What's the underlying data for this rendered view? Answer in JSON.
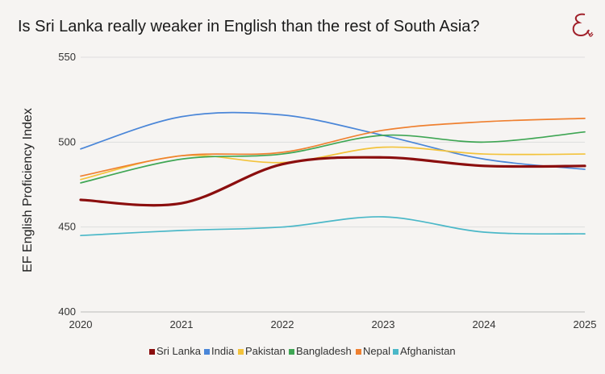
{
  "page": {
    "title": "Is Sri Lanka really weaker in English than the rest of South Asia?"
  },
  "chart_data": {
    "type": "line",
    "title": "Is Sri Lanka really weaker in English than the rest of South Asia?",
    "xlabel": "",
    "ylabel": "EF English Proficiency Index",
    "x": [
      2020,
      2021,
      2022,
      2023,
      2024,
      2025
    ],
    "ylim": [
      400,
      550
    ],
    "yticks": [
      400,
      450,
      500,
      550
    ],
    "grid": true,
    "legend_position": "bottom",
    "series": [
      {
        "name": "Sri Lanka",
        "color": "#8b0e0e",
        "values": [
          466,
          464,
          487,
          491,
          486,
          486
        ]
      },
      {
        "name": "India",
        "color": "#4a86d8",
        "values": [
          496,
          515,
          516,
          504,
          490,
          484
        ]
      },
      {
        "name": "Pakistan",
        "color": "#f3c33b",
        "values": [
          478,
          492,
          488,
          497,
          493,
          493
        ]
      },
      {
        "name": "Bangladesh",
        "color": "#3fa654",
        "values": [
          476,
          490,
          493,
          504,
          500,
          506
        ]
      },
      {
        "name": "Nepal",
        "color": "#ef8030",
        "values": [
          480,
          492,
          494,
          507,
          512,
          514
        ]
      },
      {
        "name": "Afghanistan",
        "color": "#4bb8c8",
        "values": [
          445,
          448,
          450,
          456,
          447,
          446
        ]
      }
    ]
  }
}
